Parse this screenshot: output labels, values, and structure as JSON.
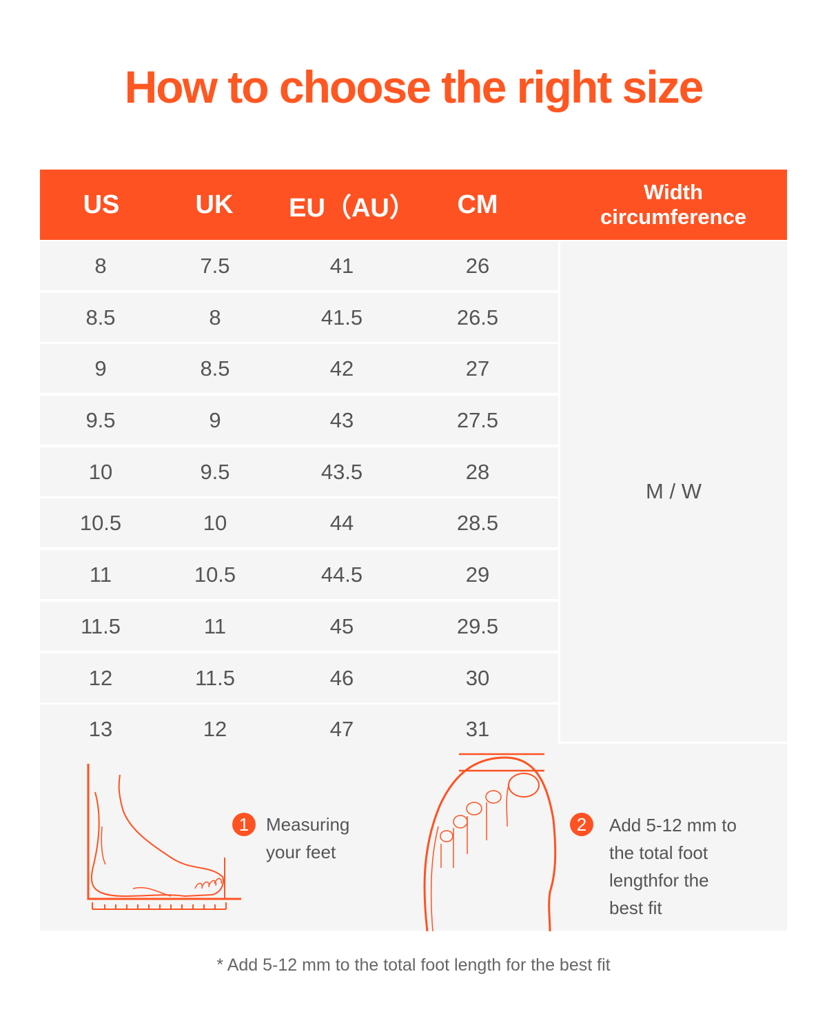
{
  "title": "How to choose the right size",
  "colors": {
    "accent": "#FF5222",
    "row_bg": "#F5F5F5",
    "text": "#555555"
  },
  "table": {
    "headers": [
      "US",
      "UK",
      "EU（AU）",
      "CM",
      "Width circumference"
    ],
    "width_header_lines": [
      "Width",
      "circumference"
    ],
    "rows": [
      [
        "8",
        "7.5",
        "41",
        "26"
      ],
      [
        "8.5",
        "8",
        "41.5",
        "26.5"
      ],
      [
        "9",
        "8.5",
        "42",
        "27"
      ],
      [
        "9.5",
        "9",
        "43",
        "27.5"
      ],
      [
        "10",
        "9.5",
        "43.5",
        "28"
      ],
      [
        "10.5",
        "10",
        "44",
        "28.5"
      ],
      [
        "11",
        "10.5",
        "44.5",
        "29"
      ],
      [
        "11.5",
        "11",
        "45",
        "29.5"
      ],
      [
        "12",
        "11.5",
        "46",
        "30"
      ],
      [
        "13",
        "12",
        "47",
        "31"
      ]
    ],
    "width_value": "M / W"
  },
  "steps": [
    {
      "number": "1",
      "lines": [
        "Measuring",
        "your feet"
      ],
      "icon": "foot-side-ruler-icon"
    },
    {
      "number": "2",
      "lines": [
        "Add 5-12 mm to",
        "the total foot",
        "lengthfor the",
        "best fit"
      ],
      "icon": "foot-top-toe-icon"
    }
  ],
  "footnote": "* Add 5-12 mm to the total foot length for the best fit"
}
